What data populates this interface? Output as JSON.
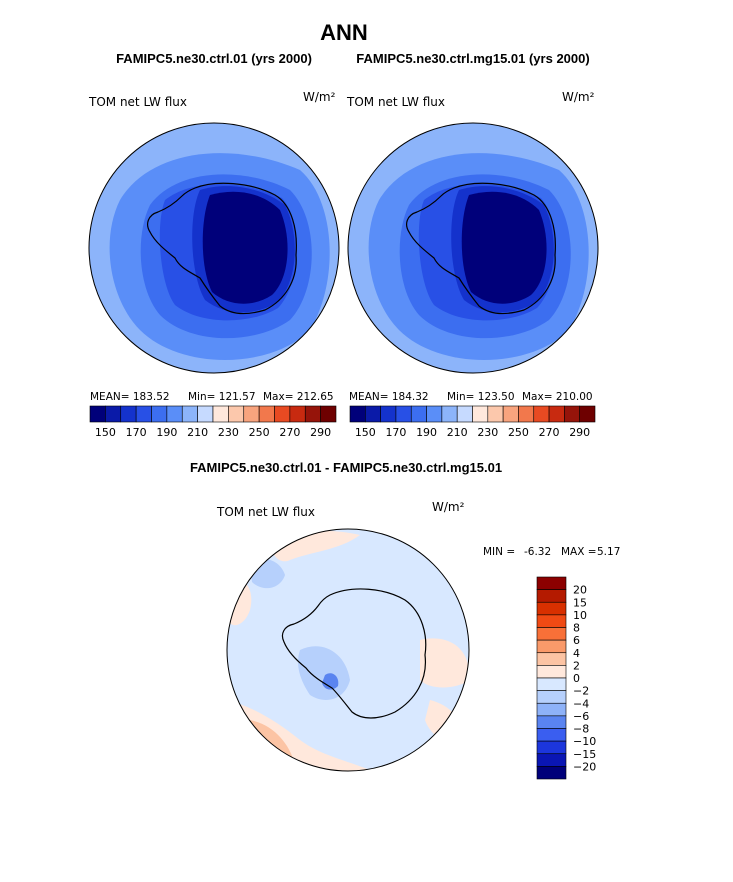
{
  "title": "ANN",
  "chart_data": [
    {
      "type": "heatmap",
      "subtitle": "FAMIPC5.ne30.ctrl.01 (yrs 2000)",
      "variable": "TOM net LW flux",
      "units": "W/m²",
      "projection": "south polar stereographic",
      "stats": {
        "mean": "MEAN= 183.52",
        "min": "Min= 121.57",
        "max": "Max= 212.65"
      },
      "levels": [
        150,
        160,
        170,
        180,
        190,
        200,
        210,
        220,
        230,
        240,
        250,
        260,
        270,
        280,
        290
      ],
      "tick_labels": [
        "150",
        "170",
        "190",
        "210",
        "230",
        "250",
        "270",
        "290"
      ],
      "colors": [
        "#00007a",
        "#0a1aa8",
        "#1432cc",
        "#2850e6",
        "#3c6ef0",
        "#5a8ef8",
        "#8cb4fa",
        "#c6daff",
        "#ffe8dc",
        "#fcc8ac",
        "#f8a47e",
        "#f2784c",
        "#e84a22",
        "#c82a10",
        "#96140a",
        "#6e0000"
      ]
    },
    {
      "type": "heatmap",
      "subtitle": "FAMIPC5.ne30.ctrl.mg15.01 (yrs 2000)",
      "variable": "TOM net LW flux",
      "units": "W/m²",
      "projection": "south polar stereographic",
      "stats": {
        "mean": "MEAN= 184.32",
        "min": "Min= 123.50",
        "max": "Max= 210.00"
      },
      "levels": [
        150,
        160,
        170,
        180,
        190,
        200,
        210,
        220,
        230,
        240,
        250,
        260,
        270,
        280,
        290
      ],
      "tick_labels": [
        "150",
        "170",
        "190",
        "210",
        "230",
        "250",
        "270",
        "290"
      ],
      "colors": [
        "#00007a",
        "#0a1aa8",
        "#1432cc",
        "#2850e6",
        "#3c6ef0",
        "#5a8ef8",
        "#8cb4fa",
        "#c6daff",
        "#ffe8dc",
        "#fcc8ac",
        "#f8a47e",
        "#f2784c",
        "#e84a22",
        "#c82a10",
        "#96140a",
        "#6e0000"
      ]
    },
    {
      "type": "heatmap",
      "subtitle": "FAMIPC5.ne30.ctrl.01 - FAMIPC5.ne30.ctrl.mg15.01",
      "variable": "TOM net LW flux",
      "units": "W/m²",
      "projection": "south polar stereographic",
      "stats": {
        "min_label": "MIN =",
        "min": "-6.32",
        "max_label": "MAX =",
        "max": "5.17"
      },
      "levels": [
        -20,
        -15,
        -10,
        -8,
        -6,
        -4,
        -2,
        0,
        2,
        4,
        6,
        8,
        10,
        15,
        20
      ],
      "tick_labels": [
        "20",
        "15",
        "10",
        "8",
        "6",
        "4",
        "2",
        "0",
        "−2",
        "−4",
        "−6",
        "−8",
        "−10",
        "−15",
        "−20"
      ],
      "colors": [
        "#8c0000",
        "#b41a00",
        "#d83000",
        "#f04a14",
        "#f87038",
        "#fa9a6a",
        "#fcc4a4",
        "#ffe8dc",
        "#d8e8ff",
        "#b6d0fc",
        "#8eb2f8",
        "#5a84f0",
        "#3a5ef0",
        "#1c36dc",
        "#0a16b4",
        "#00007a"
      ]
    }
  ]
}
